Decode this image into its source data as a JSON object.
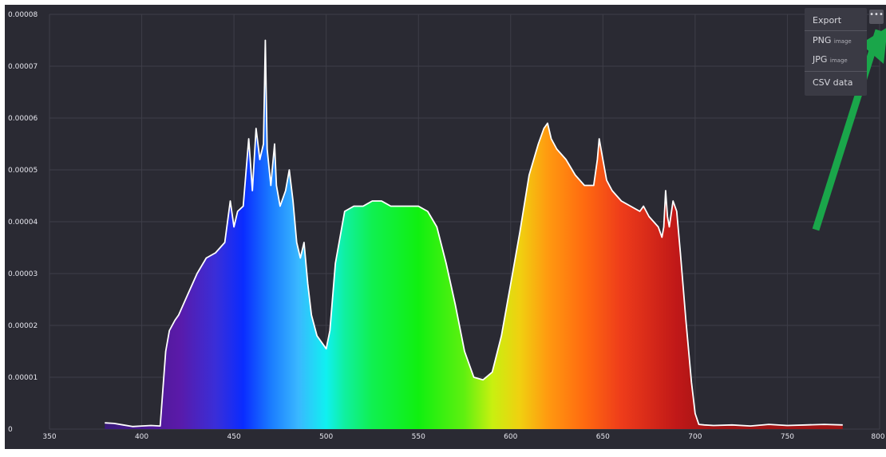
{
  "chart_data": {
    "type": "area",
    "title": "",
    "xlabel": "",
    "ylabel": "",
    "xlim": [
      350,
      800
    ],
    "ylim": [
      0,
      8e-05
    ],
    "x_ticks": [
      "350",
      "400",
      "450",
      "500",
      "550",
      "600",
      "650",
      "700",
      "750",
      "800"
    ],
    "y_ticks": [
      "0",
      "0.00001",
      "0.00002",
      "0.00003",
      "0.00004",
      "0.00005",
      "0.00006",
      "0.00007",
      "0.00008"
    ],
    "grid": true,
    "fill": "visible-spectrum gradient",
    "series": [
      {
        "x": [
          380,
          385,
          390,
          395,
          400,
          405,
          410,
          413,
          415,
          418,
          420,
          425,
          430,
          435,
          440,
          445,
          448,
          450,
          452,
          455,
          458,
          460,
          462,
          464,
          466,
          467,
          468,
          470,
          472,
          473,
          475,
          478,
          480,
          482,
          484,
          486,
          488,
          490,
          492,
          495,
          500,
          502,
          505,
          510,
          515,
          520,
          525,
          530,
          535,
          540,
          545,
          550,
          555,
          560,
          565,
          570,
          575,
          580,
          585,
          590,
          595,
          600,
          605,
          610,
          615,
          618,
          620,
          622,
          625,
          630,
          635,
          640,
          645,
          647,
          648,
          650,
          652,
          655,
          660,
          665,
          670,
          672,
          675,
          680,
          682,
          683,
          684,
          685,
          686,
          688,
          690,
          692,
          695,
          698,
          700,
          702,
          705,
          710,
          720,
          730,
          740,
          750,
          760,
          770,
          780
        ],
        "y": [
          1.2e-06,
          1.1e-06,
          8e-07,
          5e-07,
          6e-07,
          7e-07,
          6e-07,
          1.5e-05,
          1.9e-05,
          2.1e-05,
          2.2e-05,
          2.6e-05,
          3e-05,
          3.3e-05,
          3.4e-05,
          3.6e-05,
          4.4e-05,
          3.9e-05,
          4.2e-05,
          4.3e-05,
          5.6e-05,
          4.6e-05,
          5.8e-05,
          5.2e-05,
          5.5e-05,
          7.5e-05,
          5.4e-05,
          4.7e-05,
          5.5e-05,
          4.7e-05,
          4.3e-05,
          4.6e-05,
          5e-05,
          4.4e-05,
          3.6e-05,
          3.3e-05,
          3.6e-05,
          2.8e-05,
          2.2e-05,
          1.8e-05,
          1.55e-05,
          1.9e-05,
          3.2e-05,
          4.2e-05,
          4.3e-05,
          4.3e-05,
          4.4e-05,
          4.4e-05,
          4.3e-05,
          4.3e-05,
          4.3e-05,
          4.3e-05,
          4.2e-05,
          3.9e-05,
          3.2e-05,
          2.4e-05,
          1.5e-05,
          1e-05,
          9.5e-06,
          1.1e-05,
          1.8e-05,
          2.8e-05,
          3.8e-05,
          4.9e-05,
          5.5e-05,
          5.8e-05,
          5.9e-05,
          5.6e-05,
          5.4e-05,
          5.2e-05,
          4.9e-05,
          4.7e-05,
          4.7e-05,
          5.2e-05,
          5.6e-05,
          5.2e-05,
          4.8e-05,
          4.6e-05,
          4.4e-05,
          4.3e-05,
          4.2e-05,
          4.3e-05,
          4.1e-05,
          3.9e-05,
          3.7e-05,
          3.9e-05,
          4.6e-05,
          4.1e-05,
          3.9e-05,
          4.4e-05,
          4.2e-05,
          3.4e-05,
          2.1e-05,
          9e-06,
          3e-06,
          9e-07,
          8e-07,
          7e-07,
          8e-07,
          6e-07,
          9e-07,
          7e-07,
          8e-07,
          9e-07,
          8e-07
        ]
      }
    ]
  },
  "export_menu": {
    "header": "Export",
    "png_label": "PNG",
    "png_sub": "image",
    "jpg_label": "JPG",
    "jpg_sub": "image",
    "csv_label": "CSV data",
    "button_label": "•••"
  },
  "annotation": {
    "arrow_color": "#1aa64a"
  },
  "colors": {
    "background": "#2a2a33",
    "line": "#ffffff"
  }
}
